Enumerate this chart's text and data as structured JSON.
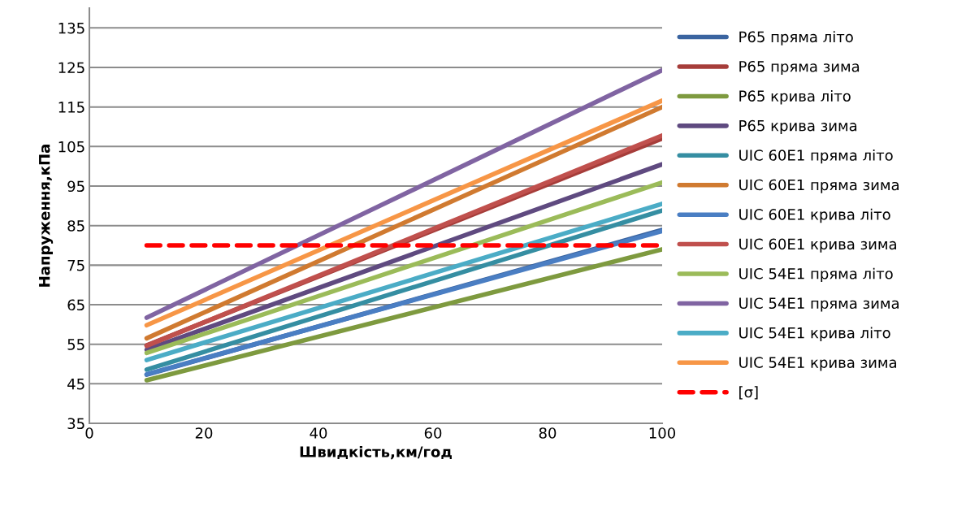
{
  "chart_data": {
    "type": "line",
    "xlabel": "Швидкість,км/год",
    "ylabel": "Напруження,кПа",
    "xlim": [
      0,
      100
    ],
    "xticks": [
      0,
      20,
      40,
      60,
      80,
      100
    ],
    "ylim": [
      35,
      140
    ],
    "yticks": [
      35,
      45,
      55,
      65,
      75,
      85,
      95,
      105,
      115,
      125,
      135
    ],
    "grid": "y",
    "legend": "right",
    "marker": "none",
    "line_style": "solid",
    "x": [
      10,
      100
    ],
    "series": [
      {
        "name": "Р65 пряма літо",
        "color": "#3a64a0",
        "values": [
          47.3,
          83.9
        ]
      },
      {
        "name": "Р65 пряма зима",
        "color": "#a63d3a",
        "values": [
          54.7,
          107.0
        ]
      },
      {
        "name": "Р65 крива літо",
        "color": "#7e9a3f",
        "values": [
          45.9,
          79.0
        ]
      },
      {
        "name": "Р65 крива зима",
        "color": "#5f4a80",
        "values": [
          53.6,
          100.5
        ]
      },
      {
        "name": "UIC 60E1 пряма літо",
        "color": "#358ea2",
        "values": [
          48.6,
          88.8
        ]
      },
      {
        "name": "UIC 60E1 пряма зима",
        "color": "#d07a30",
        "values": [
          56.5,
          115.0
        ]
      },
      {
        "name": "UIC 60E1 крива літо",
        "color": "#4a7ec3",
        "values": [
          47.4,
          83.6
        ]
      },
      {
        "name": "UIC 60E1 крива зима",
        "color": "#c0504d",
        "values": [
          54.6,
          107.8
        ]
      },
      {
        "name": "UIC 54E1 пряма літо",
        "color": "#9bbb59",
        "values": [
          52.8,
          95.9
        ]
      },
      {
        "name": "UIC 54E1 пряма зима",
        "color": "#8064a2",
        "values": [
          61.7,
          124.3
        ]
      },
      {
        "name": "UIC 54E1 крива літо",
        "color": "#4bacc6",
        "values": [
          51.0,
          90.5
        ]
      },
      {
        "name": "UIC 54E1 крива зима",
        "color": "#f79646",
        "values": [
          59.8,
          116.6
        ]
      },
      {
        "name": "[σ]",
        "color": "#ff0000",
        "line_style": "dashed",
        "values": [
          80,
          80
        ]
      }
    ]
  }
}
